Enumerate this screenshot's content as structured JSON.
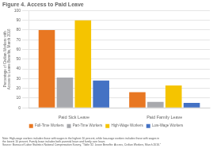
{
  "chart_data": {
    "type": "bar",
    "title": "Figure 4. Access to Paid Leave",
    "ylabel": "Percentage of Civilian Workers with\nAccess to Leave Benefits, March 2016",
    "categories": [
      "Paid Sick Leave",
      "Paid Family Leave"
    ],
    "series": [
      {
        "name": "Full-Time Workers",
        "color": "#E87722",
        "values": [
          80,
          16
        ]
      },
      {
        "name": "Part-Time Workers",
        "color": "#A8A9AD",
        "values": [
          31,
          6
        ]
      },
      {
        "name": "High-Wage Workers",
        "color": "#F5C400",
        "values": [
          90,
          23
        ]
      },
      {
        "name": "Low-Wage Workers",
        "color": "#4472C4",
        "values": [
          28,
          5
        ]
      }
    ],
    "ylim": [
      0,
      100
    ],
    "yticks": [
      0,
      10,
      20,
      30,
      40,
      50,
      60,
      70,
      80,
      90,
      100
    ],
    "grid": true,
    "legend": "bottom",
    "annotations": [
      "Note: High-wage workers includes those with wages in the highest 10 percent, while low-wage workers includes those with wages in",
      "the lowest 10 percent. Family leave includes both parental leave and family care leave.",
      "Source: Bureau of Labor Statistics National Compensation Survey, \"Table 32. Leave Benefits: Access, Civilian Workers, March 2016.\""
    ]
  }
}
